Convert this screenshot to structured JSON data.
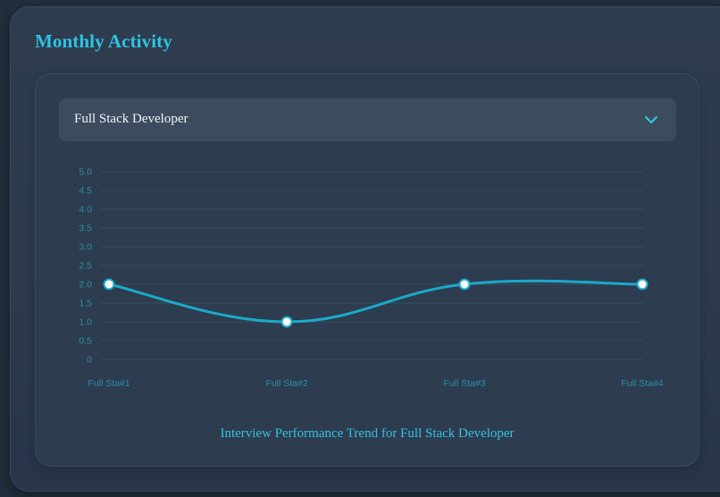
{
  "section": {
    "title": "Monthly Activity"
  },
  "selector": {
    "selected": "Full Stack Developer",
    "icon": "chevron-down-icon"
  },
  "colors": {
    "accent": "#2ec4e3",
    "line": "#1ba9c9",
    "grid": "#33505f",
    "tick": "#2a8fa8",
    "point_fill": "#ffffff"
  },
  "chart_caption": "Interview Performance Trend for Full Stack Developer",
  "chart_data": {
    "type": "line",
    "title": "Interview Performance Trend for Full Stack Developer",
    "xlabel": "",
    "ylabel": "",
    "categories": [
      "Full Sta#1",
      "Full Sta#2",
      "Full Sta#3",
      "Full Sta#4"
    ],
    "series": [
      {
        "name": "Full Stack Developer",
        "values": [
          2.0,
          1.0,
          2.0,
          2.0
        ]
      }
    ],
    "ylim": [
      0,
      5.0
    ],
    "yticks": [
      "0",
      "0.5",
      "1.0",
      "1.5",
      "2.0",
      "2.5",
      "3.0",
      "3.5",
      "4.0",
      "4.5",
      "5.0"
    ],
    "grid": true,
    "smooth": true,
    "legend": "none"
  }
}
